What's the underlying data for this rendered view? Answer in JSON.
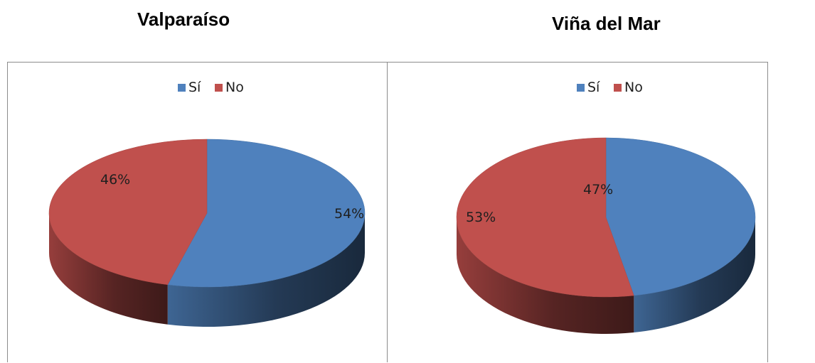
{
  "chart_data": [
    {
      "type": "pie",
      "title": "Valparaíso",
      "legend_position": "top",
      "categories": [
        "Sí",
        "No"
      ],
      "values": [
        54,
        46
      ],
      "labels": [
        "54%",
        "46%"
      ],
      "colors": {
        "Sí": "#4f81bd",
        "No": "#c0504d"
      }
    },
    {
      "type": "pie",
      "title": "Viña del Mar",
      "legend_position": "top",
      "categories": [
        "Sí",
        "No"
      ],
      "values": [
        47,
        53
      ],
      "labels": [
        "47%",
        "53%"
      ],
      "colors": {
        "Sí": "#4f81bd",
        "No": "#c0504d"
      }
    }
  ]
}
